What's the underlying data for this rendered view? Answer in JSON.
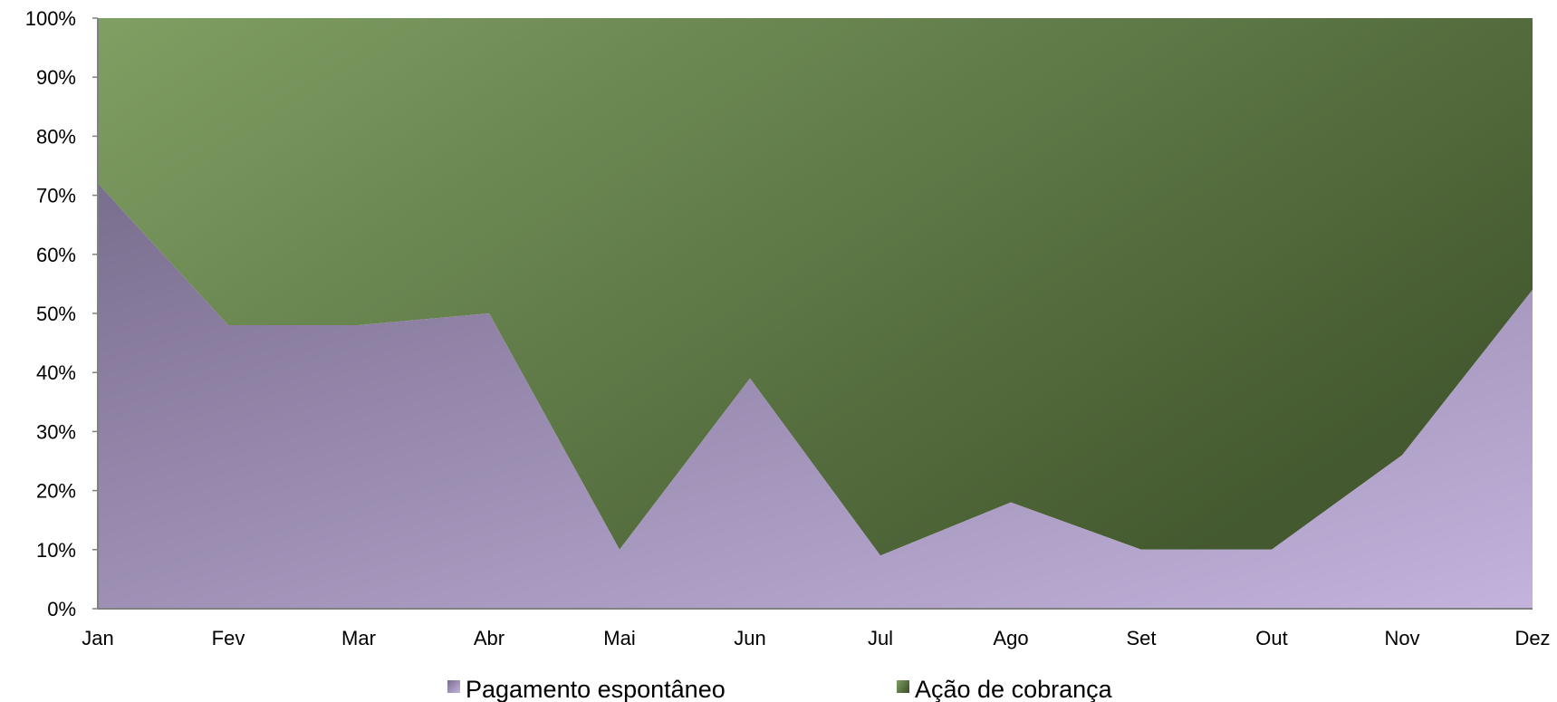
{
  "chart_data": {
    "type": "area",
    "stacked_percent": true,
    "categories": [
      "Jan",
      "Fev",
      "Mar",
      "Abr",
      "Mai",
      "Jun",
      "Jul",
      "Ago",
      "Set",
      "Out",
      "Nov",
      "Dez"
    ],
    "series": [
      {
        "name": "Pagamento espontâneo",
        "values": [
          72,
          48,
          48,
          50,
          10,
          39,
          9,
          18,
          10,
          10,
          26,
          54
        ],
        "color": "#a99bc4"
      },
      {
        "name": "Ação de cobrança",
        "values": [
          28,
          52,
          52,
          50,
          90,
          61,
          91,
          82,
          90,
          90,
          74,
          46
        ],
        "color": "#637f4b"
      }
    ],
    "y_ticks": [
      "0%",
      "10%",
      "20%",
      "30%",
      "40%",
      "50%",
      "60%",
      "70%",
      "80%",
      "90%",
      "100%"
    ],
    "ylim": [
      0,
      100
    ],
    "title": "",
    "xlabel": "",
    "ylabel": "",
    "grid": false,
    "legend": "bottom",
    "colors": {
      "pagamento_dark": "#7a6e8e",
      "pagamento_light": "#c3b3dd",
      "cobranca_light": "#7f9f63",
      "cobranca_dark": "#44592f",
      "axis": "#808080"
    }
  }
}
